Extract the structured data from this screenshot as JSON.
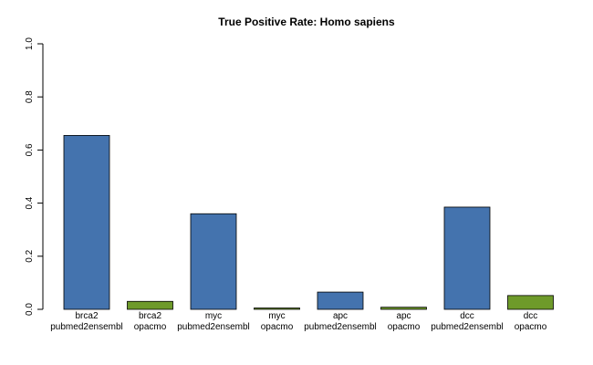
{
  "chart_data": {
    "type": "bar",
    "title": "True Positive Rate: Homo sapiens",
    "xlabel": "",
    "ylabel": "",
    "ylim": [
      0,
      1
    ],
    "yticks": [
      "0.0",
      "0.2",
      "0.4",
      "0.6",
      "0.8",
      "1.0"
    ],
    "grid": false,
    "categories": [
      [
        "brca2",
        "pubmed2ensembl"
      ],
      [
        "brca2",
        "opacmo"
      ],
      [
        "myc",
        "pubmed2ensembl"
      ],
      [
        "myc",
        "opacmo"
      ],
      [
        "apc",
        "pubmed2ensembl"
      ],
      [
        "apc",
        "opacmo"
      ],
      [
        "dcc",
        "pubmed2ensembl"
      ],
      [
        "dcc",
        "opacmo"
      ]
    ],
    "values": [
      0.655,
      0.03,
      0.36,
      0.005,
      0.065,
      0.008,
      0.385,
      0.052
    ],
    "bar_colors": [
      "#4473AE",
      "#6E9A2A",
      "#4473AE",
      "#6E9A2A",
      "#4473AE",
      "#6E9A2A",
      "#4473AE",
      "#6E9A2A"
    ]
  }
}
